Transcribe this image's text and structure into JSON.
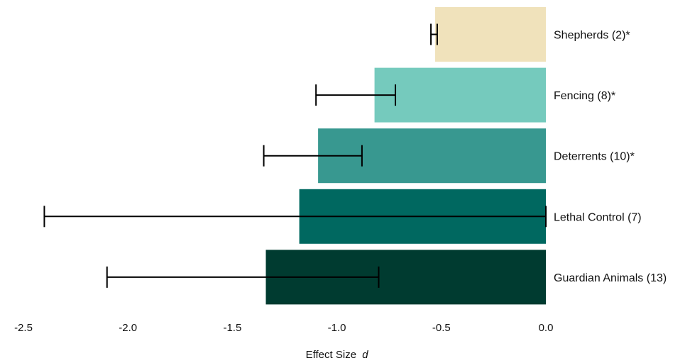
{
  "chart_data": {
    "type": "bar",
    "orientation": "horizontal",
    "categories": [
      "Shepherds (2)*",
      "Fencing (8)*",
      "Deterrents (10)*",
      "Lethal Control (7)",
      "Guardian Animals (13)"
    ],
    "values": [
      -0.53,
      -0.82,
      -1.09,
      -1.18,
      -1.34
    ],
    "error_low": [
      -0.55,
      -1.1,
      -1.35,
      -2.4,
      -2.1
    ],
    "error_high": [
      -0.52,
      -0.72,
      -0.88,
      0.0,
      -0.8
    ],
    "colors": [
      "#f0e2bb",
      "#75cabd",
      "#389890",
      "#006860",
      "#003b30"
    ],
    "xlabel": "Effect Size",
    "xlabel_italic": "d",
    "xlim": [
      -2.5,
      0.0
    ],
    "xticks": [
      -2.5,
      -2.0,
      -1.5,
      -1.0,
      -0.5,
      0.0
    ],
    "xtick_labels": [
      "-2.5",
      "-2.0",
      "-1.5",
      "-1.0",
      "-0.5",
      "0.0"
    ],
    "grid": false,
    "legend": "none",
    "category_labels_position": "right"
  }
}
